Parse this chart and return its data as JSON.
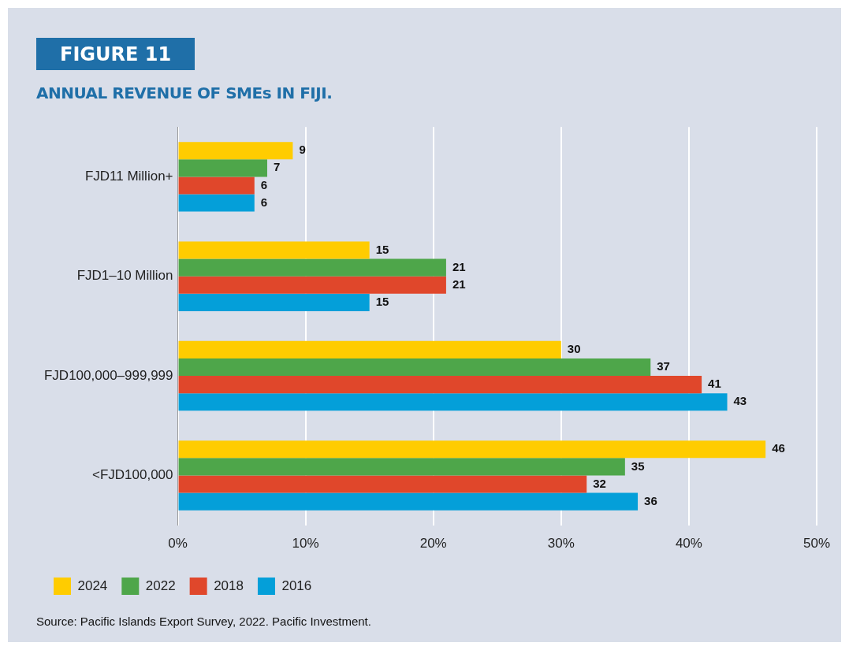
{
  "chart_data": {
    "type": "bar",
    "orientation": "horizontal",
    "title": "FIGURE 11",
    "subtitle": "ANNUAL REVENUE OF SMEs IN FIJI.",
    "categories": [
      "FJD11 Million+",
      "FJD1–10 Million",
      "FJD100,000–999,999",
      "<FJD100,000"
    ],
    "series": [
      {
        "name": "2024",
        "color": "#ffcc00",
        "values": [
          9,
          15,
          30,
          46
        ]
      },
      {
        "name": "2022",
        "color": "#4ea64a",
        "values": [
          7,
          21,
          37,
          35
        ]
      },
      {
        "name": "2018",
        "color": "#e0472b",
        "values": [
          6,
          21,
          41,
          32
        ]
      },
      {
        "name": "2016",
        "color": "#049fd9",
        "values": [
          6,
          15,
          43,
          36
        ]
      }
    ],
    "xlim": [
      0,
      50
    ],
    "xticks": [
      {
        "value": 0,
        "label": "0%"
      },
      {
        "value": 10,
        "label": "10%"
      },
      {
        "value": 20,
        "label": "20%"
      },
      {
        "value": 30,
        "label": "30%"
      },
      {
        "value": 40,
        "label": "40%"
      },
      {
        "value": 50,
        "label": "50%"
      }
    ],
    "grid": "x",
    "legend": "bottom",
    "data_labels": true,
    "annotations": [
      "Source: Pacific Islands Export Survey, 2022. Pacific Investment."
    ]
  }
}
